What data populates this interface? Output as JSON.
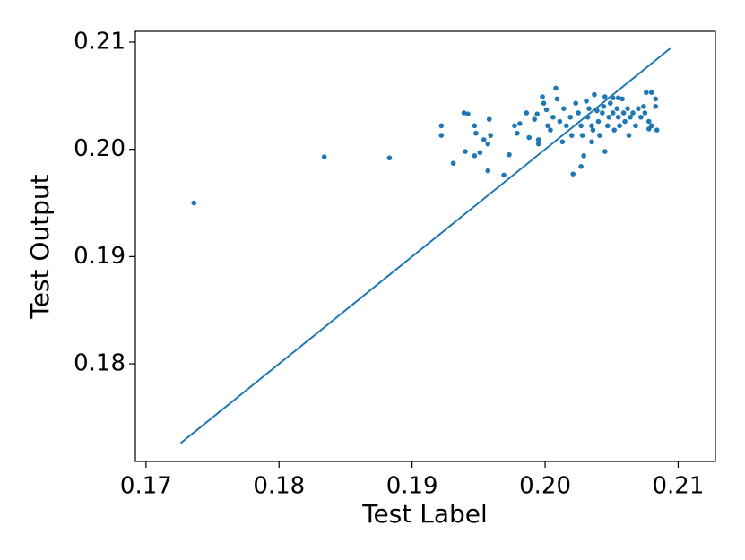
{
  "chart_data": {
    "type": "scatter",
    "xlabel": "Test Label",
    "ylabel": "Test Output",
    "xlim": [
      0.1692,
      0.2128
    ],
    "ylim": [
      0.1709,
      0.211
    ],
    "xticks": [
      0.17,
      0.18,
      0.19,
      {
        "value": 0.2,
        "label": "0.20"
      },
      0.21
    ],
    "yticks": [
      0.18,
      0.19,
      {
        "value": 0.2,
        "label": "0.20"
      },
      0.21
    ],
    "series": [
      {
        "type": "scatter",
        "color": "#1f77b4",
        "x": [
          0.1736,
          0.1834,
          0.1883,
          0.1922,
          0.1922,
          0.1931,
          0.1939,
          0.1942,
          0.194,
          0.1947,
          0.1948,
          0.1947,
          0.1951,
          0.1958,
          0.1954,
          0.1957,
          0.1959,
          0.1957,
          0.1969,
          0.1973,
          0.1977,
          0.1979,
          0.1981,
          0.1986,
          0.1988,
          0.1992,
          0.1994,
          0.1995,
          0.1995,
          0.1998,
          0.1999,
          0.2001,
          0.2002,
          0.2004,
          0.2006,
          0.2008,
          0.2009,
          0.2011,
          0.2013,
          0.2014,
          0.2016,
          0.2019,
          0.202,
          0.2021,
          0.2023,
          0.2025,
          0.2027,
          0.2028,
          0.2029,
          0.2031,
          0.2032,
          0.2033,
          0.2035,
          0.2036,
          0.2037,
          0.2039,
          0.204,
          0.2041,
          0.2043,
          0.2044,
          0.2045,
          0.2047,
          0.2048,
          0.2049,
          0.2051,
          0.2052,
          0.2054,
          0.2055,
          0.2056,
          0.2058,
          0.2059,
          0.206,
          0.2062,
          0.2063,
          0.2064,
          0.2066,
          0.2068,
          0.207,
          0.2072,
          0.2074,
          0.2075,
          0.2078,
          0.208,
          0.2083,
          0.2084,
          0.2076,
          0.208,
          0.2083,
          0.2078,
          0.2055,
          0.2051,
          0.2045,
          0.2027,
          0.2035
        ],
        "y": [
          0.195,
          0.1993,
          0.1992,
          0.2022,
          0.2013,
          0.1987,
          0.2034,
          0.2033,
          0.1998,
          0.2022,
          0.2015,
          0.1994,
          0.1997,
          0.2028,
          0.2009,
          0.2005,
          0.2013,
          0.198,
          0.1976,
          0.1995,
          0.2022,
          0.2015,
          0.2024,
          0.2034,
          0.2011,
          0.2028,
          0.2033,
          0.2009,
          0.2005,
          0.2049,
          0.2043,
          0.2037,
          0.2022,
          0.2018,
          0.203,
          0.2057,
          0.2047,
          0.2026,
          0.2007,
          0.2038,
          0.2022,
          0.203,
          0.2013,
          0.1977,
          0.2043,
          0.2034,
          0.2022,
          0.2013,
          0.1994,
          0.2045,
          0.203,
          0.2038,
          0.2022,
          0.2018,
          0.2051,
          0.2036,
          0.2026,
          0.2013,
          0.2034,
          0.204,
          0.2049,
          0.2022,
          0.203,
          0.2043,
          0.2034,
          0.2018,
          0.2038,
          0.203,
          0.2022,
          0.2047,
          0.2034,
          0.2026,
          0.2038,
          0.2013,
          0.203,
          0.2034,
          0.2022,
          0.2038,
          0.203,
          0.204,
          0.2034,
          0.2026,
          0.2022,
          0.204,
          0.2018,
          0.2053,
          0.2053,
          0.2047,
          0.2019,
          0.2048,
          0.2048,
          0.1998,
          0.1984,
          0.2007
        ]
      },
      {
        "type": "line",
        "color": "#1f77b4",
        "x": [
          0.1726,
          0.2094
        ],
        "y": [
          0.1726,
          0.2094
        ]
      }
    ]
  }
}
